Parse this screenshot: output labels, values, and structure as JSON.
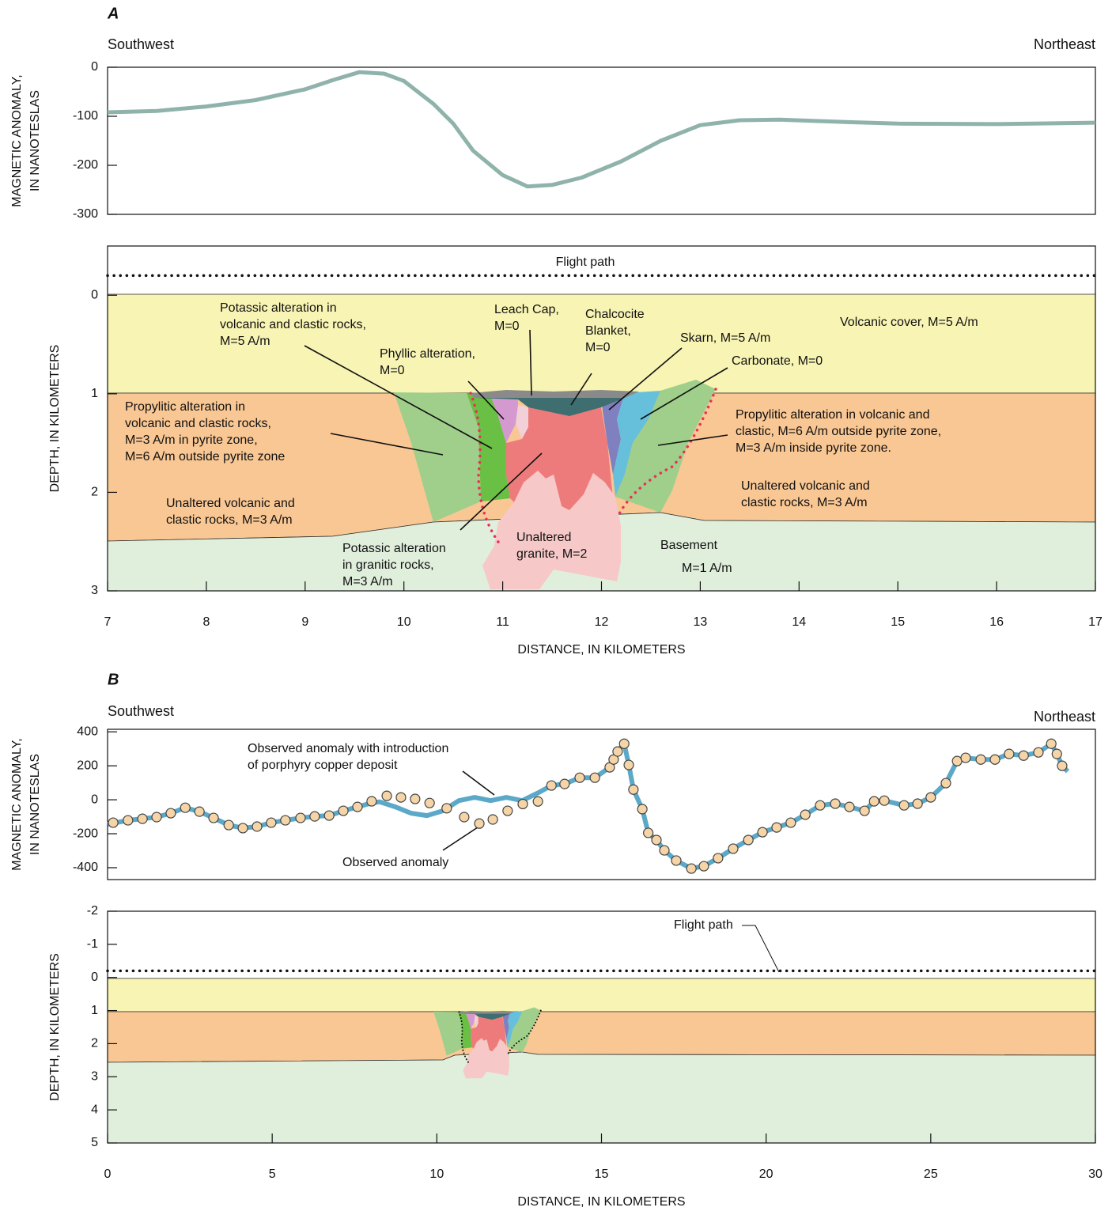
{
  "chart_data": [
    {
      "type": "line",
      "panel_label": "A",
      "left_label": "Southwest",
      "right_label": "Northeast",
      "y_label": [
        "MAGNETIC ANOMALY,",
        "IN NANOTESLAS"
      ],
      "xlim": [
        7,
        17
      ],
      "ylim": [
        -300,
        0
      ],
      "yticks": [
        0,
        -100,
        -200,
        -300
      ],
      "series": [
        {
          "style": "line",
          "color": "#8fb3ab",
          "x": [
            7,
            7.5,
            8,
            8.5,
            9,
            9.3,
            9.55,
            9.8,
            10,
            10.3,
            10.5,
            10.7,
            11,
            11.25,
            11.5,
            11.8,
            12.2,
            12.6,
            13,
            13.4,
            13.8,
            14.5,
            15,
            16,
            17
          ],
          "values": [
            -92,
            -89,
            -80,
            -67,
            -45,
            -25,
            -10,
            -13,
            -28,
            -75,
            -115,
            -170,
            -220,
            -243,
            -240,
            -225,
            -192,
            -150,
            -118,
            -108,
            -107,
            -112,
            -115,
            -116,
            -113
          ]
        }
      ]
    },
    {
      "type": "section",
      "y_label": "DEPTH, IN KILOMETERS",
      "x_label": "DISTANCE, IN KILOMETERS",
      "xlim": [
        7,
        17
      ],
      "ylim": [
        -0.5,
        3
      ],
      "y_inverted": true,
      "xticks": [
        7,
        8,
        9,
        10,
        11,
        12,
        13,
        14,
        15,
        16,
        17
      ],
      "yticks": [
        0,
        1,
        2,
        3
      ],
      "flight_path": {
        "label": "Flight path",
        "depth": -0.2
      },
      "labels": [
        [
          "Potassic alteration in",
          "volcanic and clastic rocks,",
          "M=5 A/m"
        ],
        [
          "Leach Cap,",
          "M=0"
        ],
        [
          "Chalcocite",
          "Blanket,",
          "M=0"
        ],
        [
          "Phyllic alteration,",
          "M=0"
        ],
        [
          "Skarn, M=5 A/m"
        ],
        [
          "Carbonate, M=0"
        ],
        [
          "Volcanic cover, M=5 A/m"
        ],
        [
          "Propylitic alteration in",
          "volcanic and clastic rocks,",
          "M=3 A/m in pyrite zone,",
          "M=6 A/m outside pyrite zone"
        ],
        [
          "Propylitic alteration in volcanic and",
          "clastic, M=6 A/m outside pyrite zone,",
          "M=3 A/m inside pyrite zone."
        ],
        [
          "Unaltered volcanic and",
          "clastic rocks, M=3 A/m"
        ],
        [
          "Unaltered volcanic and",
          "clastic rocks, M=3 A/m"
        ],
        [
          "Potassic alteration",
          "in granitic rocks,",
          "M=3 A/m"
        ],
        [
          "Unaltered",
          "granite, M=2"
        ],
        [
          "Basement"
        ],
        [
          "M=1 A/m"
        ]
      ]
    },
    {
      "type": "line",
      "panel_label": "B",
      "left_label": "Southwest",
      "right_label": "Northeast",
      "y_label": [
        "MAGNETIC ANOMALY,",
        "IN NANOTESLAS"
      ],
      "xlim": [
        0,
        30
      ],
      "ylim": [
        -470,
        415
      ],
      "yticks": [
        400,
        200,
        0,
        -200,
        -400
      ],
      "annotations": [
        [
          "Observed anomaly with introduction",
          "of porphyry copper deposit"
        ],
        [
          "Observed anomaly"
        ]
      ],
      "series": [
        {
          "style": "line",
          "color": "#5ba8c8",
          "x": [
            0,
            0.62,
            1.06,
            1.49,
            1.92,
            2.36,
            2.79,
            3.22,
            3.68,
            4.11,
            4.54,
            4.97,
            5.4,
            5.86,
            6.29,
            6.73,
            7.16,
            7.59,
            8.0,
            8.26,
            8.74,
            9.22,
            9.7,
            10.18,
            10.67,
            11.15,
            11.63,
            12.11,
            12.59,
            13.07,
            13.48,
            13.88,
            14.34,
            14.8,
            15.25,
            15.37,
            15.49,
            15.69,
            15.83,
            15.97,
            16.24,
            16.42,
            16.67,
            16.91,
            17.27,
            17.73,
            18.11,
            18.54,
            19.0,
            19.46,
            19.89,
            20.32,
            20.75,
            21.19,
            21.64,
            22.1,
            22.53,
            22.99,
            23.28,
            23.59,
            24.19,
            24.6,
            25.0,
            25.46,
            25.8,
            26.06,
            26.52,
            26.95,
            27.38,
            27.82,
            28.27,
            28.66,
            28.83,
            28.99,
            29.16
          ],
          "values": [
            -145,
            -121,
            -112,
            -102,
            -79,
            -47,
            -70,
            -107,
            -149,
            -167,
            -158,
            -135,
            -121,
            -107,
            -98,
            -93,
            -65,
            -42,
            -20,
            -12,
            -42,
            -79,
            -93,
            -65,
            -5,
            14,
            -5,
            14,
            -5,
            40,
            84,
            93,
            130,
            130,
            191,
            237,
            284,
            330,
            205,
            60,
            -55,
            -195,
            -237,
            -298,
            -358,
            -405,
            -391,
            -344,
            -288,
            -237,
            -191,
            -163,
            -135,
            -88,
            -33,
            -23,
            -42,
            -65,
            -9,
            -5,
            -33,
            -23,
            14,
            98,
            228,
            247,
            237,
            237,
            270,
            260,
            279,
            330,
            270,
            200,
            167
          ]
        },
        {
          "style": "markers",
          "color": "#f5d5a8",
          "x": [
            0.17,
            0.62,
            1.06,
            1.49,
            1.92,
            2.36,
            2.79,
            3.22,
            3.68,
            4.11,
            4.54,
            4.97,
            5.4,
            5.86,
            6.29,
            6.73,
            7.16,
            7.59,
            8.02,
            8.48,
            8.91,
            9.34,
            9.78,
            10.3,
            10.83,
            11.29,
            11.7,
            12.15,
            12.61,
            13.07,
            13.48,
            13.88,
            14.34,
            14.8,
            15.25,
            15.37,
            15.49,
            15.69,
            15.83,
            15.97,
            16.24,
            16.42,
            16.67,
            16.91,
            17.27,
            17.73,
            18.11,
            18.54,
            19.0,
            19.46,
            19.89,
            20.32,
            20.75,
            21.19,
            21.64,
            22.1,
            22.53,
            22.99,
            23.28,
            23.59,
            24.19,
            24.6,
            25.0,
            25.46,
            25.8,
            26.06,
            26.52,
            26.95,
            27.38,
            27.82,
            28.27,
            28.66,
            28.83,
            28.99
          ],
          "values": [
            -135,
            -121,
            -112,
            -102,
            -79,
            -47,
            -70,
            -107,
            -149,
            -167,
            -158,
            -135,
            -121,
            -107,
            -98,
            -93,
            -65,
            -42,
            -9,
            23,
            14,
            5,
            -19,
            -50,
            -102,
            -140,
            -116,
            -65,
            -25,
            -10,
            84,
            93,
            130,
            130,
            191,
            237,
            284,
            330,
            205,
            60,
            -55,
            -195,
            -237,
            -298,
            -358,
            -405,
            -391,
            -344,
            -288,
            -237,
            -191,
            -163,
            -135,
            -88,
            -33,
            -23,
            -42,
            -65,
            -9,
            -5,
            -33,
            -23,
            14,
            98,
            228,
            247,
            237,
            237,
            270,
            260,
            279,
            330,
            270,
            200
          ]
        }
      ]
    },
    {
      "type": "section",
      "y_label": "DEPTH, IN KILOMETERS",
      "x_label": "DISTANCE, IN KILOMETERS",
      "xlim": [
        0,
        30
      ],
      "ylim": [
        -2,
        5
      ],
      "y_inverted": true,
      "xticks": [
        0,
        5,
        10,
        15,
        20,
        25,
        30
      ],
      "yticks": [
        -2,
        -1,
        0,
        1,
        2,
        3,
        4,
        5
      ],
      "flight_path": {
        "label": "Flight path",
        "depth": -0.2
      }
    }
  ]
}
